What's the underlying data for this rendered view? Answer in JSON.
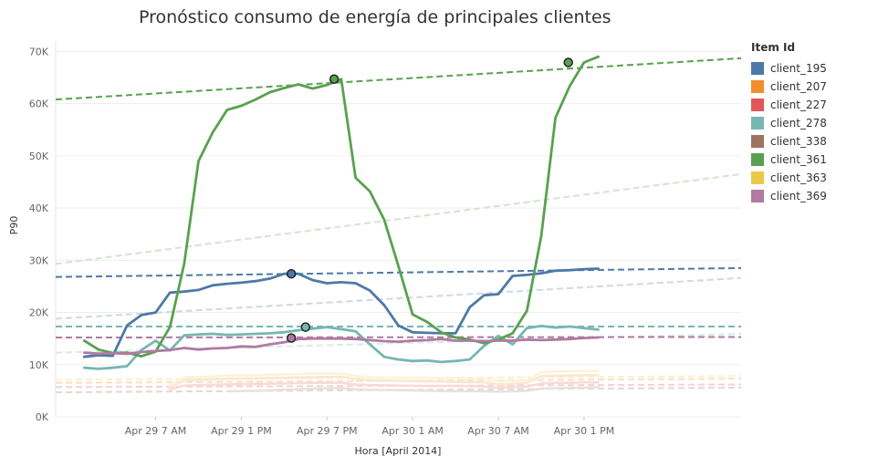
{
  "chart_data": {
    "type": "line",
    "title": "Pronóstico consumo de energía de principales clientes",
    "xlabel": "Hora [April 2014]",
    "ylabel": "P90",
    "ylim": [
      0,
      72000
    ],
    "xlim_hours": [
      0,
      48
    ],
    "y_ticks": [
      0,
      10000,
      20000,
      30000,
      40000,
      50000,
      60000,
      70000
    ],
    "y_tick_labels": [
      "0K",
      "10K",
      "20K",
      "30K",
      "40K",
      "50K",
      "60K",
      "70K"
    ],
    "x_ticks": [
      {
        "hour": 7,
        "label": "Apr 29 7 AM"
      },
      {
        "hour": 13,
        "label": "Apr 29 1 PM"
      },
      {
        "hour": 19,
        "label": "Apr 29 7 PM"
      },
      {
        "hour": 25,
        "label": "Apr 30 1 AM"
      },
      {
        "hour": 31,
        "label": "Apr 30 7 AM"
      },
      {
        "hour": 37,
        "label": "Apr 30 1 PM"
      }
    ],
    "legend": {
      "title": "Item Id",
      "placement": "right",
      "items": [
        {
          "name": "client_195",
          "color": "#4e79a7"
        },
        {
          "name": "client_207",
          "color": "#f28e2b"
        },
        {
          "name": "client_227",
          "color": "#e15759"
        },
        {
          "name": "client_278",
          "color": "#76b7b2"
        },
        {
          "name": "client_338",
          "color": "#9c755f"
        },
        {
          "name": "client_361",
          "color": "#59a14f"
        },
        {
          "name": "client_363",
          "color": "#edc948"
        },
        {
          "name": "client_369",
          "color": "#b07aa1"
        }
      ]
    },
    "series": [
      {
        "name": "client_195",
        "color": "#4e79a7",
        "faded": false,
        "x": [
          2,
          3,
          4,
          5,
          6,
          7,
          8,
          9,
          10,
          11,
          12,
          13,
          14,
          15,
          16,
          17,
          18,
          19,
          20,
          21,
          22,
          23,
          24,
          25,
          26,
          27,
          28,
          29,
          30,
          31,
          32,
          33,
          34,
          35,
          36,
          37,
          38
        ],
        "y": [
          11500,
          11800,
          11700,
          17500,
          19500,
          20000,
          23800,
          24000,
          24300,
          25200,
          25500,
          25700,
          26000,
          26500,
          27400,
          27400,
          26200,
          25600,
          25800,
          25600,
          24200,
          21400,
          17500,
          16200,
          16100,
          16000,
          16000,
          21000,
          23300,
          23500,
          27000,
          27200,
          27500,
          28000,
          28100,
          28300,
          28400
        ],
        "trend": [
          26800,
          28500
        ],
        "marker": {
          "x": 16.5,
          "y": 27400
        }
      },
      {
        "name": "client_278",
        "color": "#76b7b2",
        "faded": false,
        "x": [
          2,
          3,
          4,
          5,
          6,
          7,
          8,
          9,
          10,
          11,
          12,
          13,
          14,
          15,
          16,
          17,
          18,
          19,
          20,
          21,
          22,
          23,
          24,
          25,
          26,
          27,
          28,
          29,
          30,
          31,
          32,
          33,
          34,
          35,
          36,
          37,
          38
        ],
        "y": [
          9400,
          9200,
          9400,
          9700,
          12800,
          14600,
          12700,
          15600,
          15800,
          15900,
          15700,
          15800,
          15900,
          16000,
          16200,
          16600,
          16900,
          17200,
          16800,
          16400,
          13900,
          11500,
          11000,
          10700,
          10800,
          10500,
          10700,
          11000,
          13600,
          15500,
          13900,
          17000,
          17400,
          17100,
          17300,
          17000,
          16700
        ],
        "trend": [
          17300,
          17300
        ],
        "marker": {
          "x": 17.5,
          "y": 17200
        }
      },
      {
        "name": "client_361",
        "color": "#59a14f",
        "faded": false,
        "x": [
          2,
          3,
          4,
          5,
          6,
          7,
          8,
          9,
          10,
          11,
          12,
          13,
          14,
          15,
          16,
          17,
          18,
          19,
          20,
          21,
          22,
          23,
          24,
          25,
          26,
          27,
          28,
          29,
          30,
          31,
          32,
          33,
          34,
          35,
          36,
          37,
          38
        ],
        "y": [
          14600,
          12900,
          12200,
          12300,
          11600,
          12500,
          17200,
          29300,
          49000,
          54500,
          58800,
          59600,
          60800,
          62200,
          63000,
          63700,
          62900,
          63600,
          64700,
          45800,
          43200,
          37800,
          28900,
          19600,
          18200,
          16200,
          15200,
          14800,
          14100,
          14800,
          16000,
          20300,
          34600,
          57300,
          63400,
          67900,
          69000
        ],
        "trend": [
          60800,
          68700
        ],
        "marker": {
          "x": 19.5,
          "y": 64700
        },
        "marker2": {
          "x": 35.9,
          "y": 67900
        }
      },
      {
        "name": "client_369",
        "color": "#b07aa1",
        "faded": false,
        "x": [
          2,
          3,
          4,
          5,
          6,
          7,
          8,
          9,
          10,
          11,
          12,
          13,
          14,
          15,
          16,
          17,
          18,
          19,
          20,
          21,
          22,
          23,
          24,
          25,
          26,
          27,
          28,
          29,
          30,
          31,
          32,
          33,
          34,
          35,
          36,
          37,
          38
        ],
        "y": [
          12300,
          12100,
          12200,
          12100,
          12400,
          12600,
          12800,
          13200,
          12900,
          13100,
          13200,
          13500,
          13400,
          13900,
          14300,
          14900,
          15000,
          15000,
          15000,
          14900,
          14700,
          14500,
          14400,
          14600,
          14700,
          14900,
          14600,
          14600,
          14500,
          14600,
          14600,
          14800,
          14700,
          14800,
          14900,
          15100,
          15200
        ],
        "trend": [
          15200,
          15300
        ],
        "marker": {
          "x": 16.5,
          "y": 15100
        }
      },
      {
        "name": "client_363",
        "color": "#edc948",
        "faded": true,
        "x": [
          8,
          9,
          10,
          12,
          14,
          16,
          18,
          20,
          21,
          22,
          24,
          26,
          28,
          30,
          31,
          32,
          33,
          34,
          35,
          36,
          37,
          38
        ],
        "y": [
          6200,
          7600,
          7600,
          7900,
          8000,
          8100,
          8300,
          8300,
          7800,
          7600,
          7500,
          7500,
          7400,
          7300,
          6800,
          6900,
          7000,
          8500,
          8700,
          8700,
          8800,
          8800
        ],
        "trend": [
          7100,
          7800
        ]
      },
      {
        "name": "client_207",
        "color": "#f28e2b",
        "faded": true,
        "x": [
          8,
          9,
          10,
          12,
          14,
          16,
          18,
          20,
          21,
          22,
          24,
          26,
          28,
          30,
          31,
          32,
          33,
          34,
          35,
          36,
          37,
          38
        ],
        "y": [
          5600,
          7000,
          7100,
          7300,
          7400,
          7500,
          7600,
          7700,
          7200,
          7000,
          6900,
          6800,
          6700,
          6600,
          6200,
          6300,
          6500,
          7800,
          7900,
          7900,
          8000,
          8000
        ],
        "trend": [
          6500,
          7300
        ]
      },
      {
        "name": "client_227",
        "color": "#e15759",
        "faded": true,
        "x": [
          8,
          9,
          10,
          12,
          14,
          16,
          18,
          20,
          21,
          22,
          24,
          26,
          28,
          30,
          31,
          32,
          33,
          34,
          35,
          36,
          37,
          38
        ],
        "y": [
          5200,
          6000,
          6100,
          6200,
          6300,
          6400,
          6500,
          6500,
          6200,
          6100,
          6000,
          5900,
          5900,
          5800,
          5600,
          5700,
          5800,
          6400,
          6500,
          6500,
          6600,
          6600
        ],
        "trend": [
          5700,
          6200
        ]
      },
      {
        "name": "client_338",
        "color": "#9c755f",
        "faded": true,
        "x": [
          12,
          14,
          16,
          18,
          20,
          21,
          22,
          24,
          26,
          28,
          30,
          31,
          32,
          33,
          34,
          35,
          36,
          37,
          38
        ],
        "y": [
          4900,
          5000,
          5200,
          5400,
          5500,
          5300,
          5200,
          5100,
          5000,
          4900,
          4900,
          4800,
          4900,
          5000,
          5400,
          5500,
          5600,
          5600,
          5700
        ],
        "trend": [
          4700,
          5600
        ]
      },
      {
        "name": "client_361_light",
        "color": "#59a14f",
        "faded": true,
        "trend_only": true,
        "trend": [
          29300,
          46500
        ]
      },
      {
        "name": "client_195_light",
        "color": "#4e79a7",
        "faded": true,
        "trend_only": true,
        "trend": [
          18800,
          26600
        ]
      },
      {
        "name": "client_278_light",
        "color": "#76b7b2",
        "faded": true,
        "trend_only": true,
        "trend": [
          12300,
          15900
        ]
      }
    ]
  }
}
